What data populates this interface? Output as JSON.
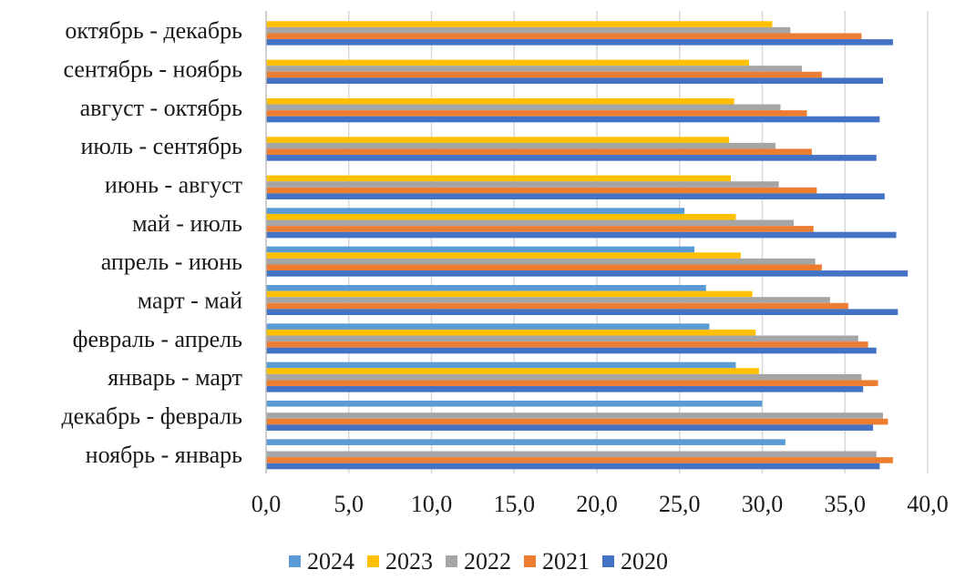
{
  "chart_data": {
    "type": "bar",
    "orientation": "horizontal",
    "categories": [
      "ноябрь - январь",
      "декабрь - февраль",
      "январь  - март",
      "февраль  - апрель",
      "март  - май",
      "апрель  - июнь",
      "май - июль",
      "июнь  - август",
      "июль  - сентябрь",
      "август  - октябрь",
      "сентябрь - ноябрь",
      "октябрь - декабрь"
    ],
    "series": [
      {
        "name": "2024",
        "color": "#5B9BD5",
        "values": [
          31.4,
          30.0,
          28.4,
          26.8,
          26.6,
          25.9,
          25.3,
          null,
          null,
          null,
          null,
          null
        ]
      },
      {
        "name": "2023",
        "color": "#FFC000",
        "values": [
          null,
          null,
          29.8,
          29.6,
          29.4,
          28.7,
          28.4,
          28.1,
          28.0,
          28.3,
          29.2,
          30.6
        ]
      },
      {
        "name": "2022",
        "color": "#A5A5A5",
        "values": [
          36.9,
          37.3,
          36.0,
          35.8,
          34.1,
          33.2,
          31.9,
          31.0,
          30.8,
          31.1,
          32.4,
          31.7
        ]
      },
      {
        "name": "2021",
        "color": "#ED7D31",
        "values": [
          37.9,
          37.6,
          37.0,
          36.4,
          35.2,
          33.6,
          33.1,
          33.3,
          33.0,
          32.7,
          33.6,
          36.0
        ]
      },
      {
        "name": "2020",
        "color": "#4472C4",
        "values": [
          37.1,
          36.7,
          36.1,
          36.9,
          38.2,
          38.8,
          38.1,
          37.4,
          36.9,
          37.1,
          37.3,
          37.9
        ]
      }
    ],
    "legend_order": [
      "2024",
      "2023",
      "2022",
      "2021",
      "2020"
    ],
    "xlim": [
      0,
      40
    ],
    "xticks": [
      "0,0",
      "5,0",
      "10,0",
      "15,0",
      "20,0",
      "25,0",
      "30,0",
      "35,0",
      "40,0"
    ],
    "xtick_values": [
      0,
      5,
      10,
      15,
      20,
      25,
      30,
      35,
      40
    ],
    "grid": "vertical",
    "legend_position": "bottom"
  }
}
